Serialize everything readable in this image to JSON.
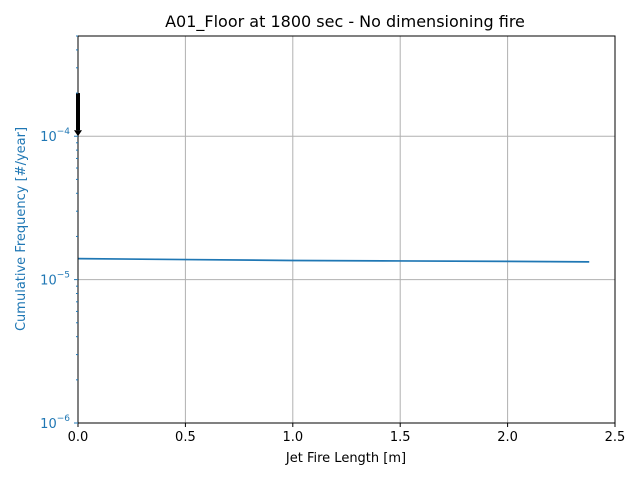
{
  "chart_data": {
    "type": "line",
    "title": "A01_Floor at 1800 sec - No dimensioning fire",
    "xlabel": "Jet Fire Length [m]",
    "ylabel": "Cumulative Frequency [#/year]",
    "xlim": [
      0,
      2.5
    ],
    "ylim": [
      1e-06,
      0.0005
    ],
    "yscale": "log",
    "grid": true,
    "x_ticks": [
      {
        "value": 0.0,
        "label": "0.0"
      },
      {
        "value": 0.5,
        "label": "0.5"
      },
      {
        "value": 1.0,
        "label": "1.0"
      },
      {
        "value": 1.5,
        "label": "1.5"
      },
      {
        "value": 2.0,
        "label": "2.0"
      },
      {
        "value": 2.5,
        "label": "2.5"
      }
    ],
    "y_ticks": [
      {
        "value": 1e-06,
        "base": "10",
        "exp": "−6"
      },
      {
        "value": 1e-05,
        "base": "10",
        "exp": "−5"
      },
      {
        "value": 0.0001,
        "base": "10",
        "exp": "−4"
      }
    ],
    "series": [
      {
        "x": [
          0.0,
          0.5,
          1.0,
          1.5,
          2.0,
          2.38
        ],
        "y": [
          1.4e-05,
          1.38e-05,
          1.36e-05,
          1.35e-05,
          1.34e-05,
          1.33e-05
        ],
        "color": "#1f77b4"
      }
    ],
    "annotation": {
      "type": "arrow",
      "x": 0.0,
      "y_from": 0.0002,
      "y_to": 0.0001,
      "color": "#000000"
    },
    "ylabel_color": "#1f77b4"
  }
}
